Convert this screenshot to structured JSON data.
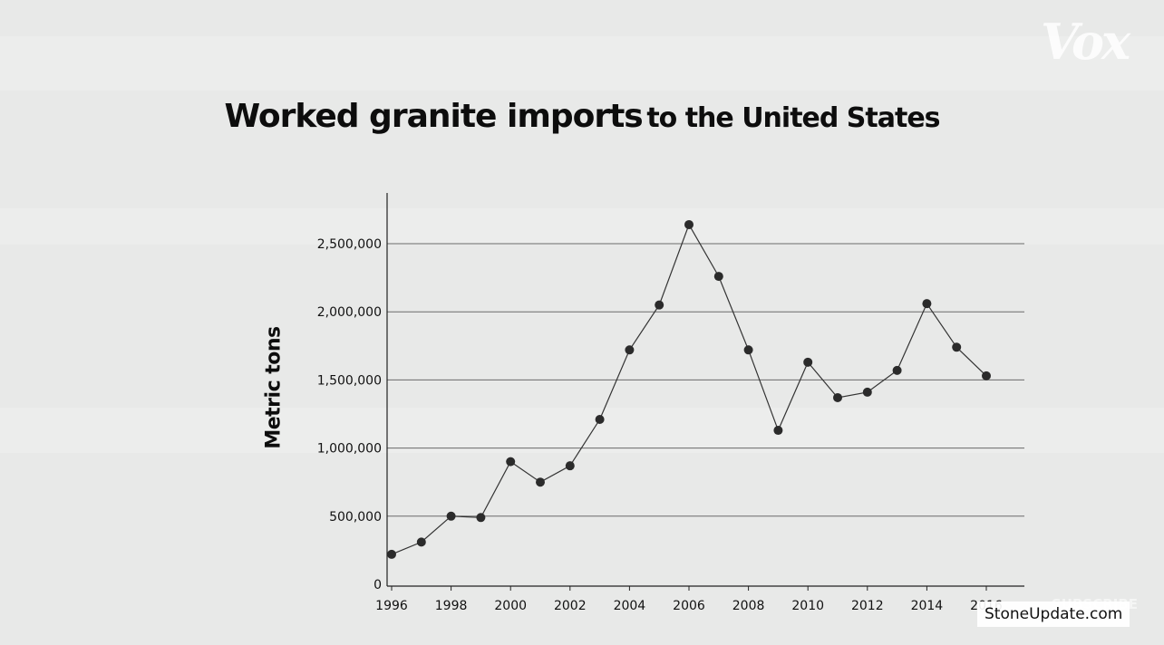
{
  "branding": {
    "logo_text": "Vox",
    "source_text": "StoneUpdate.com",
    "subscribe_text": "SUBSCRIBE"
  },
  "colors": {
    "background": "#e8e9e8",
    "line": "#333333",
    "marker": "#2b2b2b",
    "gridline": "#6a6a6a"
  },
  "chart_data": {
    "type": "line",
    "title_part1": "Worked granite imports",
    "title_part2": "to the United States",
    "xlabel": "",
    "ylabel": "Metric tons",
    "x": [
      1996,
      1997,
      1998,
      1999,
      2000,
      2001,
      2002,
      2003,
      2004,
      2005,
      2006,
      2007,
      2008,
      2009,
      2010,
      2011,
      2012,
      2013,
      2014,
      2015,
      2016
    ],
    "series": [
      {
        "values": [
          220000,
          310000,
          500000,
          490000,
          900000,
          750000,
          870000,
          1210000,
          1720000,
          2050000,
          2640000,
          2260000,
          1720000,
          1130000,
          1630000,
          1370000,
          1410000,
          1570000,
          2060000,
          1740000,
          1530000
        ]
      }
    ],
    "xlim": [
      1996,
      2016
    ],
    "ylim": [
      0,
      2500000
    ],
    "x_ticks": [
      1996,
      1998,
      2000,
      2002,
      2004,
      2006,
      2008,
      2010,
      2012,
      2014,
      2016
    ],
    "x_tick_labels": [
      "1996",
      "1998",
      "2000",
      "2002",
      "2004",
      "2006",
      "2008",
      "2010",
      "2012",
      "2014",
      "2016"
    ],
    "y_ticks": [
      0,
      500000,
      1000000,
      1500000,
      2000000,
      2500000
    ],
    "y_tick_labels": [
      "0",
      "500,000",
      "1,000,000",
      "1,500,000",
      "2,000,000",
      "2,500,000"
    ],
    "grid": "horizontal",
    "markers": true
  }
}
